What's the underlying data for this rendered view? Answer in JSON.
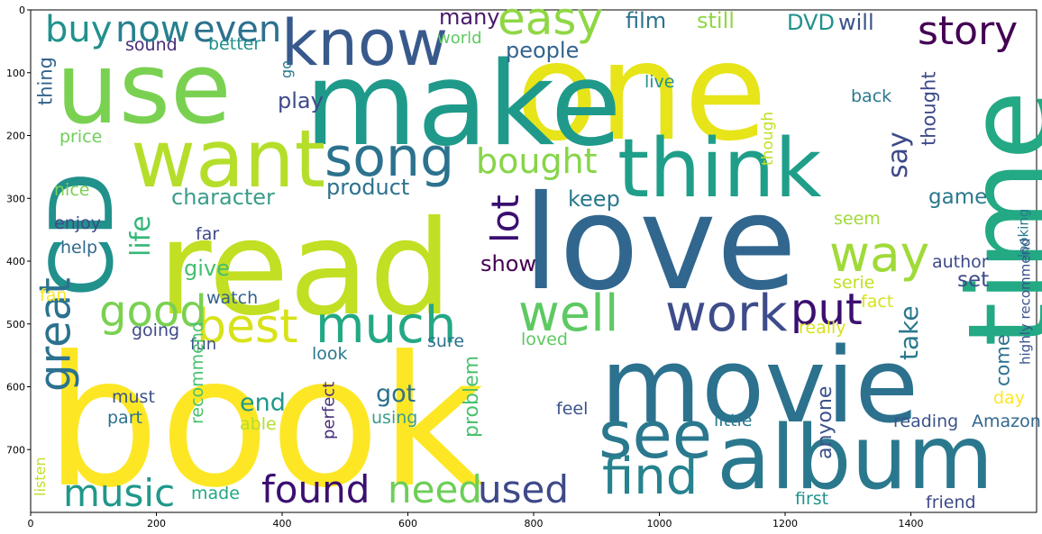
{
  "figure": {
    "x_ticks": [
      "0",
      "200",
      "400",
      "600",
      "800",
      "1000",
      "1200",
      "1400"
    ],
    "y_ticks": [
      "0",
      "100",
      "200",
      "300",
      "400",
      "500",
      "600",
      "700"
    ],
    "x_range": [
      0,
      1600
    ],
    "y_range": [
      0,
      800
    ],
    "y_inverted": true
  },
  "words": [
    {
      "text": "book",
      "color": "#fde725",
      "vertical": false
    },
    {
      "text": "read",
      "color": "#c2df23",
      "vertical": false
    },
    {
      "text": "one",
      "color": "#e7e419",
      "vertical": false
    },
    {
      "text": "love",
      "color": "#31668e",
      "vertical": false
    },
    {
      "text": "movie",
      "color": "#2c718e",
      "vertical": false
    },
    {
      "text": "album",
      "color": "#2a788e",
      "vertical": false
    },
    {
      "text": "make",
      "color": "#1f9a8a",
      "vertical": false
    },
    {
      "text": "time",
      "color": "#23a983",
      "vertical": true
    },
    {
      "text": "use",
      "color": "#7ad151",
      "vertical": false
    },
    {
      "text": "think",
      "color": "#1f9e89",
      "vertical": false
    },
    {
      "text": "CD",
      "color": "#21918c",
      "vertical": true
    },
    {
      "text": "want",
      "color": "#b5de2b",
      "vertical": false
    },
    {
      "text": "know",
      "color": "#38598c",
      "vertical": false
    },
    {
      "text": "see",
      "color": "#2a788e",
      "vertical": false
    },
    {
      "text": "song",
      "color": "#2c728e",
      "vertical": false
    },
    {
      "text": "best",
      "color": "#d8e219",
      "vertical": false
    },
    {
      "text": "much",
      "color": "#22a884",
      "vertical": false
    },
    {
      "text": "work",
      "color": "#3e4c8a",
      "vertical": false
    },
    {
      "text": "well",
      "color": "#5ec962",
      "vertical": false
    },
    {
      "text": "easy",
      "color": "#8fd744",
      "vertical": false
    },
    {
      "text": "way",
      "color": "#a0da39",
      "vertical": false
    },
    {
      "text": "find",
      "color": "#26828e",
      "vertical": false
    },
    {
      "text": "put",
      "color": "#3b0f70",
      "vertical": false
    },
    {
      "text": "story",
      "color": "#440154",
      "vertical": false
    },
    {
      "text": "good",
      "color": "#7ad151",
      "vertical": false
    },
    {
      "text": "great",
      "color": "#2c728e",
      "vertical": true
    },
    {
      "text": "music",
      "color": "#1f988b",
      "vertical": false
    },
    {
      "text": "found",
      "color": "#3b0f70",
      "vertical": false
    },
    {
      "text": "need",
      "color": "#6ece58",
      "vertical": false
    },
    {
      "text": "used",
      "color": "#3e4989",
      "vertical": false
    },
    {
      "text": "buy",
      "color": "#21918c",
      "vertical": false
    },
    {
      "text": "now",
      "color": "#27808e",
      "vertical": false
    },
    {
      "text": "even",
      "color": "#2c718e",
      "vertical": false
    },
    {
      "text": "lot",
      "color": "#3b0f70",
      "vertical": true
    },
    {
      "text": "life",
      "color": "#35b779",
      "vertical": true
    },
    {
      "text": "bought",
      "color": "#86d549",
      "vertical": false
    },
    {
      "text": "say",
      "color": "#3e4a89",
      "vertical": true
    },
    {
      "text": "product",
      "color": "#2c718e",
      "vertical": false
    },
    {
      "text": "show",
      "color": "#440154",
      "vertical": false
    },
    {
      "text": "keep",
      "color": "#29798e",
      "vertical": false
    },
    {
      "text": "character",
      "color": "#3b9d8a",
      "vertical": false
    },
    {
      "text": "give",
      "color": "#44bf70",
      "vertical": false
    },
    {
      "text": "people",
      "color": "#33638d",
      "vertical": false
    },
    {
      "text": "film",
      "color": "#2c718e",
      "vertical": false
    },
    {
      "text": "still",
      "color": "#8fd744",
      "vertical": false
    },
    {
      "text": "DVD",
      "color": "#21918c",
      "vertical": false
    },
    {
      "text": "will",
      "color": "#3b528b",
      "vertical": false
    },
    {
      "text": "many",
      "color": "#48186a",
      "vertical": false
    },
    {
      "text": "sound",
      "color": "#472d7b",
      "vertical": false
    },
    {
      "text": "better",
      "color": "#21918c",
      "vertical": false
    },
    {
      "text": "world",
      "color": "#5ec962",
      "vertical": false
    },
    {
      "text": "play",
      "color": "#3e4a89",
      "vertical": false
    },
    {
      "text": "go",
      "color": "#2a788e",
      "vertical": true
    },
    {
      "text": "thing",
      "color": "#33638d",
      "vertical": true
    },
    {
      "text": "price",
      "color": "#6ece58",
      "vertical": false
    },
    {
      "text": "nice",
      "color": "#7ad151",
      "vertical": false
    },
    {
      "text": "enjoy",
      "color": "#3e4a89",
      "vertical": false
    },
    {
      "text": "help",
      "color": "#31688e",
      "vertical": false
    },
    {
      "text": "far",
      "color": "#3e4a89",
      "vertical": false
    },
    {
      "text": "fan",
      "color": "#fde725",
      "vertical": false
    },
    {
      "text": "watch",
      "color": "#33638d",
      "vertical": false
    },
    {
      "text": "going",
      "color": "#3e4a89",
      "vertical": false
    },
    {
      "text": "fun",
      "color": "#3b528b",
      "vertical": false
    },
    {
      "text": "look",
      "color": "#2a788e",
      "vertical": false
    },
    {
      "text": "sure",
      "color": "#2c728e",
      "vertical": false
    },
    {
      "text": "loved",
      "color": "#5ec962",
      "vertical": false
    },
    {
      "text": "must",
      "color": "#3b528b",
      "vertical": false
    },
    {
      "text": "part",
      "color": "#2c718e",
      "vertical": false
    },
    {
      "text": "end",
      "color": "#1f988b",
      "vertical": false
    },
    {
      "text": "able",
      "color": "#b5de2b",
      "vertical": false
    },
    {
      "text": "made",
      "color": "#22a884",
      "vertical": false
    },
    {
      "text": "recommend",
      "color": "#4ac16d",
      "vertical": true
    },
    {
      "text": "listen",
      "color": "#c2df23",
      "vertical": true
    },
    {
      "text": "got",
      "color": "#2c718e",
      "vertical": false
    },
    {
      "text": "using",
      "color": "#3b9d8a",
      "vertical": false
    },
    {
      "text": "perfect",
      "color": "#472d7b",
      "vertical": true
    },
    {
      "text": "problem",
      "color": "#4ac16d",
      "vertical": true
    },
    {
      "text": "feel",
      "color": "#3b528b",
      "vertical": false
    },
    {
      "text": "little",
      "color": "#2a788e",
      "vertical": false
    },
    {
      "text": "first",
      "color": "#21918c",
      "vertical": false
    },
    {
      "text": "anyone",
      "color": "#3b528b",
      "vertical": true
    },
    {
      "text": "take",
      "color": "#2a788e",
      "vertical": true
    },
    {
      "text": "come",
      "color": "#2c718e",
      "vertical": true
    },
    {
      "text": "highly recommend",
      "color": "#3b528b",
      "vertical": true
    },
    {
      "text": "looking",
      "color": "#2a788e",
      "vertical": true
    },
    {
      "text": "day",
      "color": "#fde725",
      "vertical": false
    },
    {
      "text": "reading",
      "color": "#3b528b",
      "vertical": false
    },
    {
      "text": "Amazon",
      "color": "#31688e",
      "vertical": false
    },
    {
      "text": "friend",
      "color": "#3e4a89",
      "vertical": false
    },
    {
      "text": "really",
      "color": "#d8e219",
      "vertical": false
    },
    {
      "text": "fact",
      "color": "#d8e219",
      "vertical": false
    },
    {
      "text": "serie",
      "color": "#c2df23",
      "vertical": false
    },
    {
      "text": "set",
      "color": "#3e4a89",
      "vertical": false
    },
    {
      "text": "author",
      "color": "#3e4a89",
      "vertical": false
    },
    {
      "text": "seem",
      "color": "#a0da39",
      "vertical": false
    },
    {
      "text": "game",
      "color": "#29798e",
      "vertical": false
    },
    {
      "text": "thought",
      "color": "#3e4a89",
      "vertical": true
    },
    {
      "text": "though",
      "color": "#c2df23",
      "vertical": true
    },
    {
      "text": "back",
      "color": "#2a788e",
      "vertical": false
    },
    {
      "text": "live",
      "color": "#21918c",
      "vertical": false
    }
  ]
}
